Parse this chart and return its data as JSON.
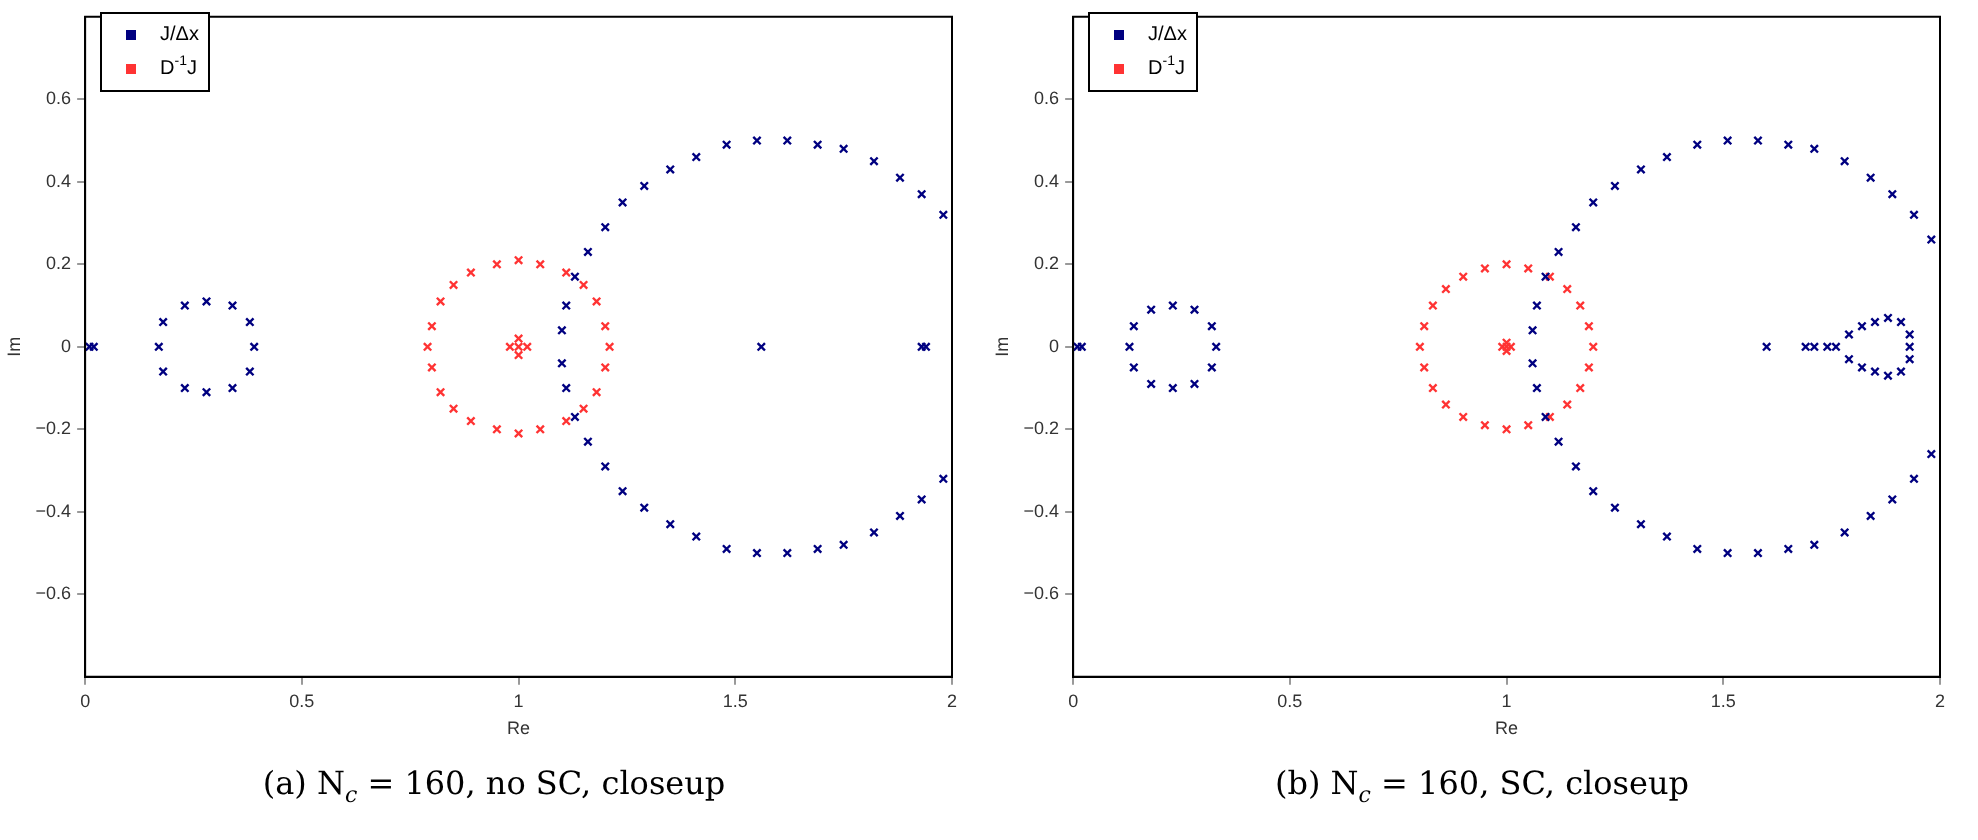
{
  "chart_data": [
    {
      "type": "scatter",
      "xlabel": "Re",
      "ylabel": "Im",
      "annotations": [
        "(a)  N$_{c}$ = 160, no SC, closeup"
      ],
      "xlim": [
        0,
        2
      ],
      "ylim": [
        -0.8,
        0.8
      ],
      "xticks": [
        0,
        0.5,
        1,
        1.5,
        2
      ],
      "yticks": [
        {
          "value": -0.6,
          "label": "−0.6"
        },
        {
          "value": -0.4,
          "label": "−0.4"
        },
        {
          "value": -0.2,
          "label": "−0.2"
        },
        0,
        0.2,
        0.4,
        0.6
      ],
      "grid": false,
      "legend": "top left",
      "marker": "cross",
      "series": [
        {
          "name": "J/Δx",
          "color": "#000080",
          "x": [
            0.01,
            0.02,
            1.56,
            1.93,
            1.94,
            0.39,
            0.38,
            0.34,
            0.28,
            0.23,
            0.18,
            0.17,
            0.18,
            0.23,
            0.28,
            0.34,
            0.38,
            1.98,
            1.93,
            1.88,
            1.82,
            1.75,
            1.69,
            1.62,
            1.55,
            1.48,
            1.41,
            1.35,
            1.29,
            1.24,
            1.2,
            1.16,
            1.13,
            1.11,
            1.1,
            1.1,
            1.11,
            1.13,
            1.16,
            1.2,
            1.24,
            1.29,
            1.35,
            1.41,
            1.48,
            1.55,
            1.62,
            1.69,
            1.75,
            1.82,
            1.88,
            1.93,
            1.98
          ],
          "values": [
            0,
            0,
            0,
            0,
            0,
            0,
            0.06,
            0.1,
            0.11,
            0.1,
            0.06,
            0,
            -0.06,
            -0.1,
            -0.11,
            -0.1,
            -0.06,
            0.32,
            0.37,
            0.41,
            0.45,
            0.48,
            0.49,
            0.5,
            0.5,
            0.49,
            0.46,
            0.43,
            0.39,
            0.35,
            0.29,
            0.23,
            0.17,
            0.1,
            0.04,
            -0.04,
            -0.1,
            -0.17,
            -0.23,
            -0.29,
            -0.35,
            -0.39,
            -0.43,
            -0.46,
            -0.49,
            -0.5,
            -0.5,
            -0.49,
            -0.48,
            -0.45,
            -0.41,
            -0.37,
            -0.32
          ]
        },
        {
          "name": "D$^{-1}$J",
          "color": "#ff3333",
          "x": [
            1,
            0.98,
            1.02,
            1,
            1,
            1.21,
            1.2,
            1.18,
            1.15,
            1.11,
            1.05,
            1,
            0.95,
            0.89,
            0.85,
            0.82,
            0.8,
            0.79,
            0.8,
            0.82,
            0.85,
            0.89,
            0.95,
            1,
            1.05,
            1.11,
            1.15,
            1.18,
            1.2
          ],
          "values": [
            0,
            0,
            0,
            0.02,
            -0.02,
            0,
            0.05,
            0.11,
            0.15,
            0.18,
            0.2,
            0.21,
            0.2,
            0.18,
            0.15,
            0.11,
            0.05,
            0,
            -0.05,
            -0.11,
            -0.15,
            -0.18,
            -0.2,
            -0.21,
            -0.2,
            -0.18,
            -0.15,
            -0.11,
            -0.05
          ]
        }
      ]
    },
    {
      "type": "scatter",
      "xlabel": "Re",
      "ylabel": "Im",
      "annotations": [
        "(b)  N$_{c}$ = 160, SC, closeup"
      ],
      "xlim": [
        0,
        2
      ],
      "ylim": [
        -0.8,
        0.8
      ],
      "xticks": [
        0,
        0.5,
        1,
        1.5,
        2
      ],
      "yticks": [
        {
          "value": -0.6,
          "label": "−0.6"
        },
        {
          "value": -0.4,
          "label": "−0.4"
        },
        {
          "value": -0.2,
          "label": "−0.2"
        },
        0,
        0.2,
        0.4,
        0.6
      ],
      "grid": false,
      "legend": "top left",
      "marker": "cross",
      "series": [
        {
          "name": "J/Δx",
          "color": "#000080",
          "x": [
            0.01,
            0.02,
            1.6,
            1.69,
            1.71,
            1.74,
            1.76,
            1.79,
            1.82,
            1.85,
            1.88,
            1.91,
            1.93,
            1.93,
            1.93,
            1.91,
            1.88,
            1.85,
            1.82,
            1.79,
            0.33,
            0.32,
            0.28,
            0.23,
            0.18,
            0.14,
            0.13,
            0.14,
            0.18,
            0.23,
            0.28,
            0.32,
            1.98,
            1.94,
            1.89,
            1.84,
            1.78,
            1.71,
            1.65,
            1.58,
            1.51,
            1.44,
            1.37,
            1.31,
            1.25,
            1.2,
            1.16,
            1.12,
            1.09,
            1.07,
            1.06,
            1.06,
            1.07,
            1.09,
            1.12,
            1.16,
            1.2,
            1.25,
            1.31,
            1.37,
            1.44,
            1.51,
            1.58,
            1.65,
            1.71,
            1.78,
            1.84,
            1.89,
            1.94,
            1.98
          ],
          "values": [
            0,
            0,
            0,
            0,
            0,
            0,
            0,
            0.03,
            0.05,
            0.06,
            0.07,
            0.06,
            0.03,
            0,
            -0.03,
            -0.06,
            -0.07,
            -0.06,
            -0.05,
            -0.03,
            0,
            0.05,
            0.09,
            0.1,
            0.09,
            0.05,
            0,
            -0.05,
            -0.09,
            -0.1,
            -0.09,
            -0.05,
            0.26,
            0.32,
            0.37,
            0.41,
            0.45,
            0.48,
            0.49,
            0.5,
            0.5,
            0.49,
            0.46,
            0.43,
            0.39,
            0.35,
            0.29,
            0.23,
            0.17,
            0.1,
            0.04,
            -0.04,
            -0.1,
            -0.17,
            -0.23,
            -0.29,
            -0.35,
            -0.39,
            -0.43,
            -0.46,
            -0.49,
            -0.5,
            -0.5,
            -0.49,
            -0.48,
            -0.45,
            -0.41,
            -0.37,
            -0.32,
            -0.26
          ]
        },
        {
          "name": "D$^{-1}$J",
          "color": "#ff3333",
          "x": [
            1,
            0.99,
            1.01,
            1,
            1,
            1.2,
            1.19,
            1.17,
            1.14,
            1.1,
            1.05,
            1,
            0.95,
            0.9,
            0.86,
            0.83,
            0.81,
            0.8,
            0.81,
            0.83,
            0.86,
            0.9,
            0.95,
            1,
            1.05,
            1.1,
            1.14,
            1.17,
            1.19
          ],
          "values": [
            0,
            0,
            0,
            0.01,
            -0.01,
            0,
            0.05,
            0.1,
            0.14,
            0.17,
            0.19,
            0.2,
            0.19,
            0.17,
            0.14,
            0.1,
            0.05,
            0,
            -0.05,
            -0.1,
            -0.14,
            -0.17,
            -0.19,
            -0.2,
            -0.19,
            -0.17,
            -0.14,
            -0.1,
            -0.05
          ]
        }
      ]
    }
  ]
}
